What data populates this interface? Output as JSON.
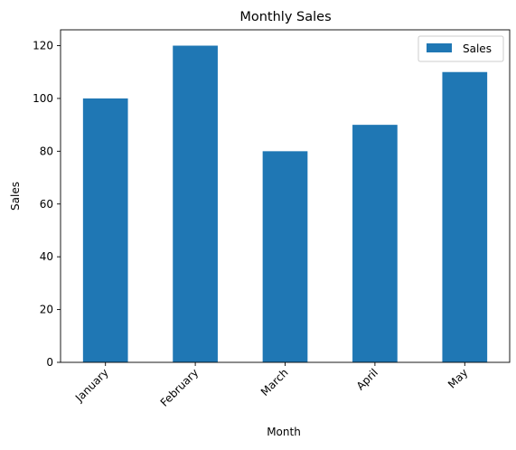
{
  "chart_data": {
    "type": "bar",
    "title": "Monthly Sales",
    "xlabel": "Month",
    "ylabel": "Sales",
    "categories": [
      "January",
      "February",
      "March",
      "April",
      "May"
    ],
    "series": [
      {
        "name": "Sales",
        "values": [
          100,
          120,
          80,
          90,
          110
        ],
        "color": "#1f77b4"
      }
    ],
    "ylim": [
      0,
      126
    ],
    "yticks": [
      0,
      20,
      40,
      60,
      80,
      100,
      120
    ],
    "x_tick_rotation_deg": 45,
    "grid": false,
    "legend_position": "top-right"
  }
}
